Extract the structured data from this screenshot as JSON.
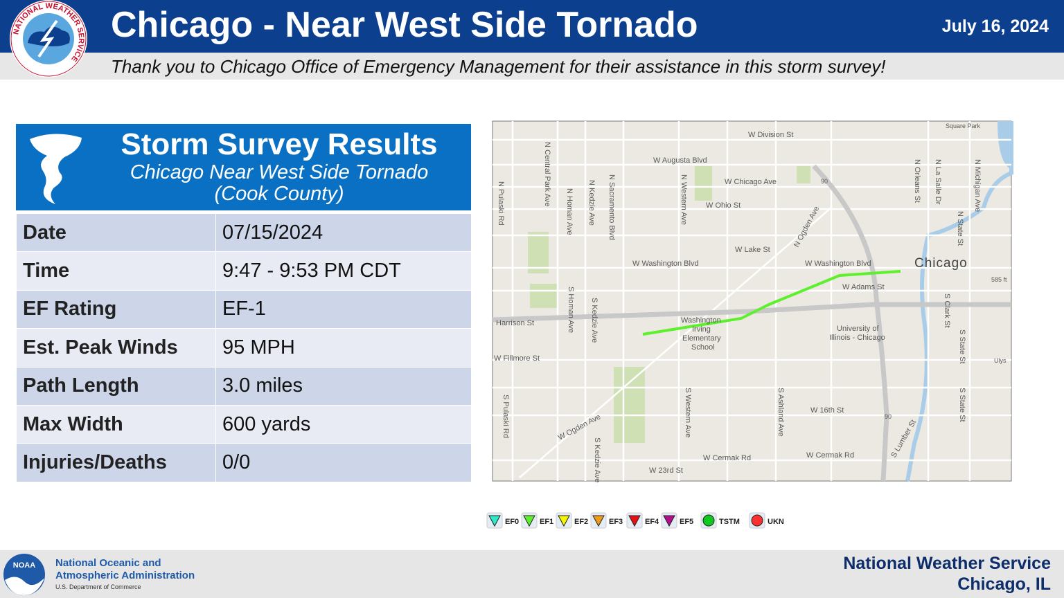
{
  "header": {
    "title": "Chicago - Near West Side Tornado",
    "date": "July 16, 2024",
    "subtitle": "Thank you to Chicago Office of Emergency Management for their assistance in this storm survey!",
    "logo_text": "NATIONAL WEATHER SERVICE"
  },
  "panel": {
    "heading": "Storm Survey Results",
    "subheading": [
      "Chicago Near West Side Tornado",
      "(Cook County)"
    ]
  },
  "table": {
    "rows": [
      [
        "Date",
        "07/15/2024"
      ],
      [
        "Time",
        "9:47 - 9:53 PM CDT"
      ],
      [
        "EF Rating",
        "EF-1"
      ],
      [
        "Est. Peak Winds",
        "95 MPH"
      ],
      [
        "Path Length",
        "3.0 miles"
      ],
      [
        "Max Width",
        "600 yards"
      ],
      [
        "Injuries/Deaths",
        "0/0"
      ]
    ]
  },
  "map": {
    "labels": [
      "W Division St",
      "W Augusta Blvd",
      "W Chicago Ave",
      "W Ohio St",
      "W Lake St",
      "W Washington Blvd",
      "W Washington Blvd",
      "W Adams St",
      "Chicago",
      "Harrison St",
      "W Fillmore St",
      "W 16th St",
      "W Cermak Rd",
      "W Cermak Rd",
      "W 23rd St",
      "W Ogden Ave",
      "N Ogden Ave",
      "University of",
      "Illinois - Chicago",
      "Washington",
      "Irving",
      "Elementary",
      "School",
      "N Pulaski Rd",
      "N Central Park Ave",
      "N Homan Ave",
      "N Kedzie Ave",
      "N Sacramento Blvd",
      "N Western Ave",
      "N Orleans St",
      "N La Salle Dr",
      "N State St",
      "N Michigan Ave",
      "S Homan Ave",
      "S Kedzie Ave",
      "S Pulaski Rd",
      "S Western Ave",
      "S Ashland Ave",
      "S Clark St",
      "S State St",
      "S State St",
      "S Kedzie Ave",
      "S Lumber St",
      "Square Park",
      "585 ft",
      "Ulys",
      "90",
      "90"
    ]
  },
  "legend": [
    "EF0",
    "EF1",
    "EF2",
    "EF3",
    "EF4",
    "EF5",
    "TSTM",
    "UKN"
  ],
  "footer": {
    "noaa_logo": "NOAA",
    "agency": [
      "National Oceanic and",
      "Atmospheric Administration"
    ],
    "department": "U.S. Department of Commerce",
    "office": [
      "National Weather Service",
      "Chicago, IL"
    ]
  }
}
